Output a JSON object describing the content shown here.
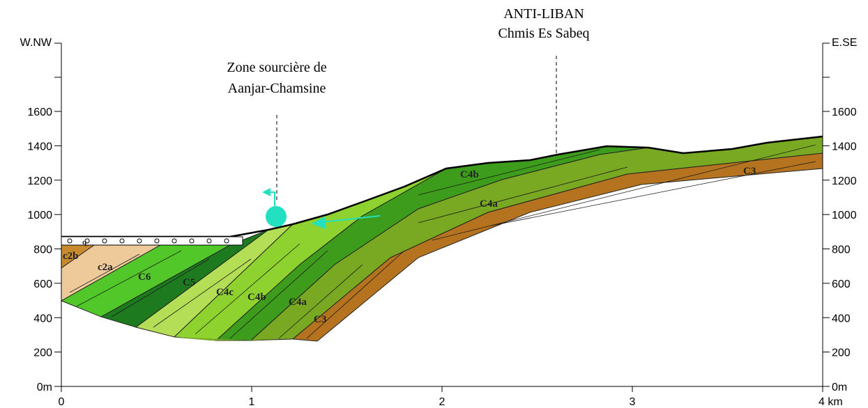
{
  "axes": {
    "left_label": "W.NW",
    "right_label": "E.SE",
    "y_tick_labels": [
      "0m",
      "200",
      "400",
      "600",
      "800",
      "1000",
      "1200",
      "1400",
      "1600"
    ],
    "x_tick_labels": [
      "0",
      "1",
      "2",
      "3",
      "4 km"
    ]
  },
  "annotations": {
    "anti_liban": {
      "title": "ANTI-LIBAN",
      "subtitle": "Chmis Es Sabeq"
    },
    "spring_zone": {
      "line1": "Zone sourcière de",
      "line2": "Aanjar-Chamsine"
    }
  },
  "layers": [
    "q",
    "c2b",
    "c2a",
    "C6",
    "C5",
    "C4c",
    "C4b",
    "C4a",
    "C3",
    "C4b",
    "C4a",
    "C3"
  ]
}
